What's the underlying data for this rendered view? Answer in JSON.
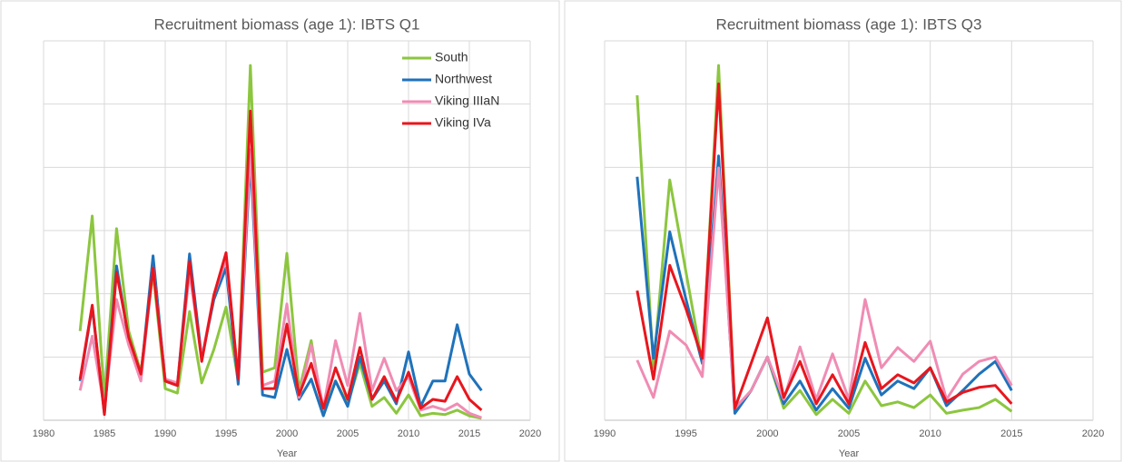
{
  "chart_data": [
    {
      "type": "line",
      "title": "Recruitment biomass (age 1): IBTS Q1",
      "x_label": "Year",
      "x": [
        1983,
        1984,
        1985,
        1986,
        1987,
        1988,
        1989,
        1990,
        1991,
        1992,
        1993,
        1994,
        1995,
        1996,
        1997,
        1998,
        1999,
        2000,
        2001,
        2002,
        2003,
        2004,
        2005,
        2006,
        2007,
        2008,
        2009,
        2010,
        2011,
        2012,
        2013,
        2014,
        2015,
        2016
      ],
      "xlim": [
        1980,
        2020
      ],
      "xticks": [
        1980,
        1985,
        1990,
        1995,
        2000,
        2005,
        2010,
        2015,
        2020
      ],
      "ylim": [
        0,
        6
      ],
      "yticks": [
        0,
        1,
        2,
        3,
        4,
        5,
        6
      ],
      "grid": true,
      "legend": "upper right",
      "series": [
        {
          "name": "South",
          "color": "#8cc63f",
          "values": [
            1.41,
            3.23,
            0.33,
            3.03,
            1.41,
            0.76,
            2.34,
            0.5,
            0.43,
            1.72,
            0.59,
            1.12,
            1.79,
            0.62,
            5.61,
            0.76,
            0.83,
            2.64,
            0.47,
            1.26,
            0.11,
            0.62,
            0.26,
            0.9,
            0.22,
            0.36,
            0.11,
            0.4,
            0.07,
            0.11,
            0.09,
            0.16,
            0.07,
            0.03
          ]
        },
        {
          "name": "Northwest",
          "color": "#1f72bb",
          "values": [
            0.62,
            1.79,
            0.11,
            2.44,
            1.26,
            0.69,
            2.6,
            0.62,
            0.55,
            2.63,
            0.98,
            1.91,
            2.41,
            0.57,
            4.13,
            0.4,
            0.36,
            1.12,
            0.33,
            0.65,
            0.07,
            0.62,
            0.22,
            1.0,
            0.33,
            0.62,
            0.26,
            1.08,
            0.22,
            0.62,
            0.62,
            1.51,
            0.73,
            0.47
          ]
        },
        {
          "name": "Viking IIIaN",
          "color": "#f08cb4",
          "values": [
            0.47,
            1.33,
            0.19,
            1.91,
            1.19,
            0.62,
            2.41,
            0.65,
            0.59,
            2.34,
            0.98,
            1.98,
            2.55,
            0.69,
            4.28,
            0.55,
            0.62,
            1.84,
            0.36,
            1.19,
            0.19,
            1.26,
            0.55,
            1.69,
            0.47,
            0.98,
            0.47,
            0.69,
            0.16,
            0.22,
            0.16,
            0.26,
            0.11,
            0.04
          ]
        },
        {
          "name": "Viking IVa",
          "color": "#e8161e",
          "values": [
            0.65,
            1.82,
            0.09,
            2.34,
            1.31,
            0.73,
            2.41,
            0.62,
            0.55,
            2.51,
            0.93,
            1.98,
            2.65,
            0.65,
            4.89,
            0.5,
            0.5,
            1.52,
            0.4,
            0.9,
            0.19,
            0.83,
            0.33,
            1.15,
            0.33,
            0.69,
            0.3,
            0.76,
            0.19,
            0.33,
            0.3,
            0.69,
            0.33,
            0.16
          ]
        }
      ]
    },
    {
      "type": "line",
      "title": "Recruitment biomass (age 1): IBTS Q3",
      "x_label": "Year",
      "x": [
        1992,
        1993,
        1994,
        1995,
        1996,
        1997,
        1998,
        1999,
        2000,
        2001,
        2002,
        2003,
        2004,
        2005,
        2006,
        2007,
        2008,
        2009,
        2010,
        2011,
        2012,
        2013,
        2014,
        2015
      ],
      "xlim": [
        1990,
        2020
      ],
      "xticks": [
        1990,
        1995,
        2000,
        2005,
        2010,
        2015,
        2020
      ],
      "ylim": [
        0,
        6
      ],
      "yticks": [
        0,
        1,
        2,
        3,
        4,
        5,
        6
      ],
      "grid": true,
      "series": [
        {
          "color": "#8cc63f",
          "values": [
            5.14,
            0.83,
            3.8,
            2.34,
            0.9,
            5.61,
            0.16,
            0.47,
            1.0,
            0.19,
            0.47,
            0.09,
            0.33,
            0.11,
            0.62,
            0.23,
            0.29,
            0.2,
            0.4,
            0.11,
            0.16,
            0.2,
            0.33,
            0.14
          ]
        },
        {
          "color": "#1f72bb",
          "values": [
            3.85,
            0.98,
            2.98,
            1.91,
            0.9,
            4.18,
            0.11,
            0.47,
            1.0,
            0.26,
            0.62,
            0.16,
            0.5,
            0.19,
            0.98,
            0.4,
            0.62,
            0.5,
            0.83,
            0.23,
            0.47,
            0.73,
            0.93,
            0.47
          ]
        },
        {
          "color": "#f08cb4",
          "values": [
            0.95,
            0.36,
            1.41,
            1.19,
            0.69,
            3.99,
            0.19,
            0.47,
            1.0,
            0.33,
            1.16,
            0.33,
            1.05,
            0.33,
            1.91,
            0.83,
            1.15,
            0.93,
            1.25,
            0.33,
            0.73,
            0.93,
            1.0,
            0.55
          ]
        },
        {
          "color": "#e8161e",
          "values": [
            2.05,
            0.65,
            2.45,
            1.76,
            0.98,
            5.32,
            0.19,
            0.9,
            1.62,
            0.36,
            0.93,
            0.26,
            0.72,
            0.26,
            1.23,
            0.5,
            0.72,
            0.59,
            0.83,
            0.29,
            0.44,
            0.52,
            0.55,
            0.26
          ]
        }
      ]
    }
  ]
}
